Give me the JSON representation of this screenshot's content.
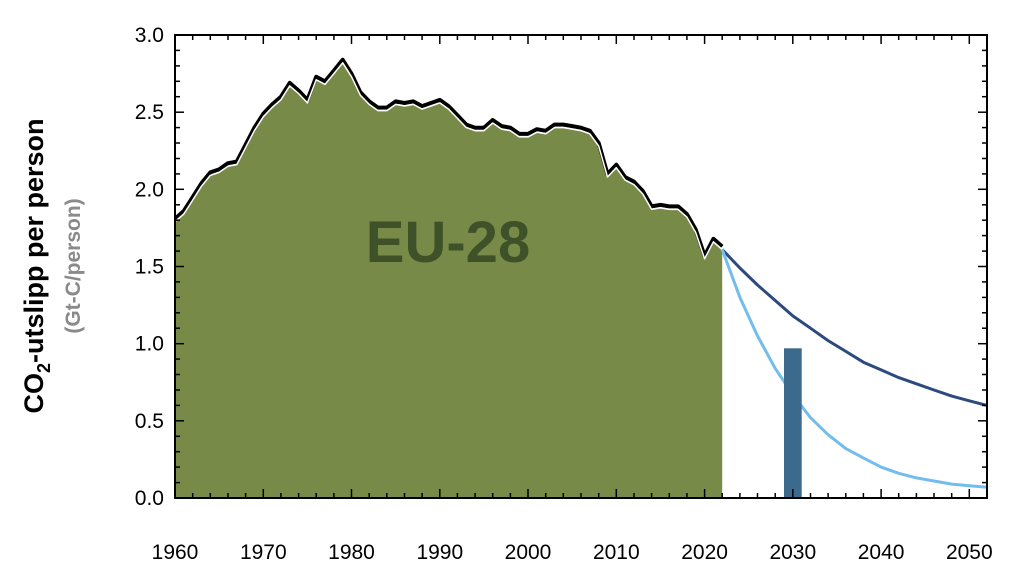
{
  "chart_data": {
    "type": "area",
    "title": "",
    "ylabel": {
      "prefix": "CO",
      "subscript": "2",
      "suffix": "-utslipp per person",
      "units": "(Gt-C/person)"
    },
    "xlabel": "",
    "xlim": [
      1960,
      2052
    ],
    "ylim": [
      0,
      3.0
    ],
    "x_ticks": [
      1960,
      1970,
      1980,
      1990,
      2000,
      2010,
      2020,
      2030,
      2040,
      2050
    ],
    "y_ticks": [
      "0.0",
      "0.5",
      "1.0",
      "1.5",
      "2.0",
      "2.5",
      "3.0"
    ],
    "annotation": "EU-28",
    "grid": false,
    "colors": {
      "historical_fill": "#788a48",
      "historical_line": "#000000",
      "slow_decline": "#2d4a7c",
      "fast_decline": "#72bdec",
      "bar_2030": "#3c6a8c"
    },
    "series": [
      {
        "key": "historical",
        "x": [
          1960,
          1961,
          1962,
          1963,
          1964,
          1965,
          1966,
          1967,
          1968,
          1969,
          1970,
          1971,
          1972,
          1973,
          1974,
          1975,
          1976,
          1977,
          1978,
          1979,
          1980,
          1981,
          1982,
          1983,
          1984,
          1985,
          1986,
          1987,
          1988,
          1989,
          1990,
          1991,
          1992,
          1993,
          1994,
          1995,
          1996,
          1997,
          1998,
          1999,
          2000,
          2001,
          2002,
          2003,
          2004,
          2005,
          2006,
          2007,
          2008,
          2009,
          2010,
          2011,
          2012,
          2013,
          2014,
          2015,
          2016,
          2017,
          2018,
          2019,
          2020,
          2021,
          2022
        ],
        "values": [
          1.79,
          1.84,
          1.93,
          2.02,
          2.09,
          2.11,
          2.15,
          2.16,
          2.27,
          2.38,
          2.47,
          2.53,
          2.58,
          2.67,
          2.62,
          2.56,
          2.71,
          2.68,
          2.75,
          2.82,
          2.73,
          2.61,
          2.55,
          2.51,
          2.51,
          2.55,
          2.54,
          2.55,
          2.52,
          2.54,
          2.56,
          2.52,
          2.46,
          2.4,
          2.38,
          2.38,
          2.43,
          2.39,
          2.38,
          2.34,
          2.34,
          2.37,
          2.36,
          2.4,
          2.4,
          2.39,
          2.38,
          2.36,
          2.28,
          2.08,
          2.14,
          2.06,
          2.03,
          1.97,
          1.87,
          1.88,
          1.87,
          1.87,
          1.82,
          1.72,
          1.55,
          1.66,
          1.61
        ]
      },
      {
        "key": "slow_decline",
        "x": [
          2022,
          2024,
          2026,
          2028,
          2030,
          2032,
          2034,
          2036,
          2038,
          2040,
          2042,
          2044,
          2046,
          2048,
          2050,
          2052
        ],
        "values": [
          1.61,
          1.49,
          1.38,
          1.28,
          1.18,
          1.1,
          1.02,
          0.95,
          0.88,
          0.83,
          0.78,
          0.74,
          0.7,
          0.66,
          0.63,
          0.6
        ]
      },
      {
        "key": "fast_decline",
        "x": [
          2022,
          2024,
          2026,
          2028,
          2030,
          2032,
          2034,
          2036,
          2038,
          2040,
          2042,
          2044,
          2046,
          2048,
          2050,
          2052
        ],
        "values": [
          1.61,
          1.3,
          1.05,
          0.84,
          0.67,
          0.52,
          0.41,
          0.32,
          0.26,
          0.2,
          0.16,
          0.13,
          0.11,
          0.09,
          0.08,
          0.07
        ]
      }
    ],
    "bar": {
      "x": 2030,
      "width": 2,
      "value": 0.97
    }
  }
}
